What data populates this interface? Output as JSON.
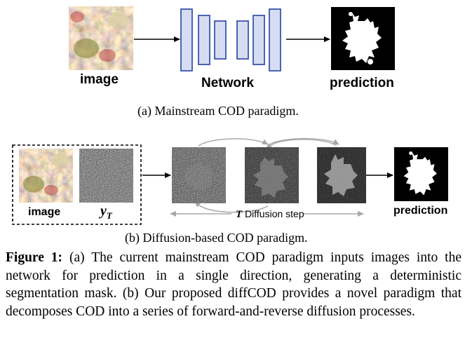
{
  "panel_a": {
    "image_label": "image",
    "network_label": "Network",
    "prediction_label": "prediction",
    "caption": "(a)  Mainstream COD paradigm."
  },
  "panel_b": {
    "image_label": "image",
    "noise_label": "y",
    "noise_subscript": "T",
    "diffusion_T": "T",
    "diffusion_label": "Diffusion step",
    "prediction_label": "prediction",
    "caption": "(b)  Diffusion-based COD paradigm."
  },
  "figure_caption": {
    "label": "Figure 1:",
    "text": " (a) The current mainstream COD paradigm inputs images into the network for prediction in a single direction, generating a deterministic segmentation mask. (b) Our proposed diffCOD provides a novel paradigm that decomposes COD into a series of forward-and-reverse diffusion processes."
  },
  "colors": {
    "network_block_fill": "#d6dcf2",
    "network_block_stroke": "#3a55a8",
    "arrow": "#000000",
    "loop_arrow": "#a8a8a8"
  }
}
